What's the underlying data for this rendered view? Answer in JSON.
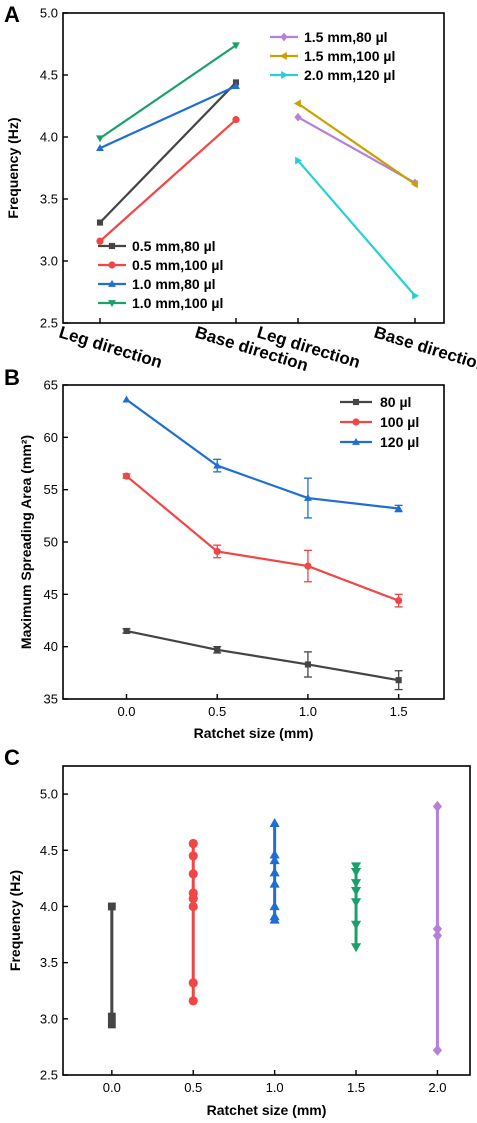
{
  "chart_data": [
    {
      "type": "line",
      "panel_label": "A",
      "ylabel": "Frequency (Hz)",
      "ylim": [
        2.5,
        5.0
      ],
      "yticks": [
        "2.5",
        "3.0",
        "3.5",
        "4.0",
        "4.5",
        "5.0"
      ],
      "categories": [
        "Leg direction",
        "Base direction",
        "Leg direction",
        "Base direction"
      ],
      "series": [
        {
          "name": "0.5 mm,80 µl",
          "color": "#454545",
          "marker": "square",
          "x": [
            0,
            1
          ],
          "values": [
            3.31,
            4.44
          ]
        },
        {
          "name": "0.5 mm,100 µl",
          "color": "#f04646",
          "marker": "circle",
          "x": [
            0,
            1
          ],
          "values": [
            3.16,
            4.14
          ]
        },
        {
          "name": "1.0 mm,80 µl",
          "color": "#1f6ed4",
          "marker": "triangle-up",
          "x": [
            0,
            1
          ],
          "values": [
            3.91,
            4.41
          ]
        },
        {
          "name": "1.0 mm,100 µl",
          "color": "#1aa06a",
          "marker": "triangle-down",
          "x": [
            0,
            1
          ],
          "values": [
            3.99,
            4.74
          ]
        },
        {
          "name": "1.5 mm,80 µl",
          "color": "#b57fdc",
          "marker": "diamond",
          "x": [
            2,
            3
          ],
          "values": [
            4.16,
            3.63
          ]
        },
        {
          "name": "1.5 mm,100 µl",
          "color": "#c8a200",
          "marker": "triangle-left",
          "x": [
            2,
            3
          ],
          "values": [
            4.27,
            3.62
          ]
        },
        {
          "name": "2.0 mm,120 µl",
          "color": "#27d0d6",
          "marker": "triangle-right",
          "x": [
            2,
            3
          ],
          "values": [
            3.81,
            2.72
          ]
        }
      ],
      "legend_groups": [
        [
          4,
          5,
          6
        ],
        [
          0,
          1,
          2,
          3
        ]
      ]
    },
    {
      "type": "line",
      "panel_label": "B",
      "xlabel": "Ratchet size (mm)",
      "ylabel": "Maximum Spreading Area (mm²)",
      "xlim": [
        -0.35,
        1.75
      ],
      "ylim": [
        35,
        65
      ],
      "x": [
        0.0,
        0.5,
        1.0,
        1.5
      ],
      "xticks": [
        "0.0",
        "0.5",
        "1.0",
        "1.5"
      ],
      "yticks": [
        "35",
        "40",
        "45",
        "50",
        "55",
        "60",
        "65"
      ],
      "legend": "top-right",
      "series": [
        {
          "name": "80 µl",
          "color": "#454545",
          "marker": "square",
          "values": [
            41.5,
            39.7,
            38.3,
            36.8
          ],
          "error": [
            0.2,
            0.3,
            1.2,
            0.9
          ]
        },
        {
          "name": "100 µl",
          "color": "#f04646",
          "marker": "circle",
          "values": [
            56.3,
            49.1,
            47.7,
            44.4
          ],
          "error": [
            0.2,
            0.6,
            1.5,
            0.6
          ]
        },
        {
          "name": "120 µl",
          "color": "#1f6ed4",
          "marker": "triangle-up",
          "values": [
            63.6,
            57.3,
            54.2,
            53.2
          ],
          "error": [
            0.1,
            0.6,
            1.9,
            0.3
          ]
        }
      ]
    },
    {
      "type": "scatter",
      "panel_label": "C",
      "xlabel": "Ratchet size (mm)",
      "ylabel": "Frequency (Hz)",
      "xlim": [
        -0.3,
        2.2
      ],
      "ylim": [
        2.5,
        5.25
      ],
      "xticks": [
        "0.0",
        "0.5",
        "1.0",
        "1.5",
        "2.0"
      ],
      "yticks": [
        "2.5",
        "3.0",
        "3.5",
        "4.0",
        "4.5",
        "5.0"
      ],
      "series": [
        {
          "color": "#454545",
          "marker": "square",
          "x": 0.0,
          "values": [
            4.0,
            3.02,
            2.95
          ]
        },
        {
          "color": "#f04646",
          "marker": "circle",
          "x": 0.5,
          "values": [
            4.56,
            4.45,
            4.29,
            4.12,
            4.07,
            4.0,
            3.32,
            3.16
          ]
        },
        {
          "color": "#1f6ed4",
          "marker": "triangle-up",
          "x": 1.0,
          "values": [
            4.74,
            4.46,
            4.41,
            4.3,
            4.2,
            4.0,
            3.91,
            3.88
          ]
        },
        {
          "color": "#1aa06a",
          "marker": "triangle-down",
          "x": 1.5,
          "values": [
            4.36,
            4.31,
            4.21,
            4.14,
            4.04,
            3.84,
            3.64
          ]
        },
        {
          "color": "#b57fdc",
          "marker": "diamond",
          "x": 2.0,
          "values": [
            4.89,
            3.8,
            3.74,
            2.72
          ]
        }
      ]
    }
  ]
}
